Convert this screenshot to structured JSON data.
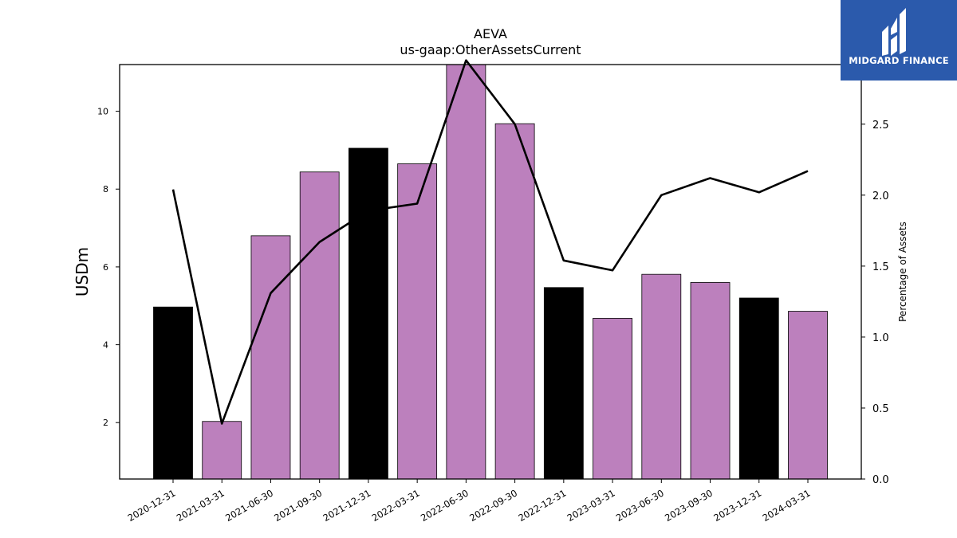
{
  "logo": {
    "text": "MIDGARD FINANCE",
    "icon": "midgard-logo-icon",
    "background": "#2b5aac"
  },
  "chart_data": {
    "type": "bar",
    "title": "AEVA",
    "subtitle": "us-gaap:OtherAssetsCurrent",
    "ylabel": "USDm",
    "y2label": "Percentage of Assets",
    "categories": [
      "2020-12-31",
      "2021-03-31",
      "2021-06-30",
      "2021-09-30",
      "2021-12-31",
      "2022-03-31",
      "2022-06-30",
      "2022-09-30",
      "2022-12-31",
      "2023-03-31",
      "2023-06-30",
      "2023-09-30",
      "2023-12-31",
      "2024-03-31"
    ],
    "series": [
      {
        "type": "bar",
        "axis": "left",
        "values": [
          4.97,
          2.03,
          6.8,
          8.44,
          9.05,
          8.65,
          11.3,
          9.68,
          5.47,
          4.68,
          5.81,
          5.6,
          5.2,
          4.86
        ],
        "colors": [
          "#000000",
          "#bc80bd",
          "#bc80bd",
          "#bc80bd",
          "#000000",
          "#bc80bd",
          "#bc80bd",
          "#bc80bd",
          "#000000",
          "#bc80bd",
          "#bc80bd",
          "#bc80bd",
          "#000000",
          "#bc80bd"
        ]
      },
      {
        "type": "line",
        "axis": "right",
        "values": [
          2.04,
          0.39,
          1.31,
          1.67,
          1.89,
          1.94,
          2.95,
          2.5,
          1.54,
          1.47,
          2.0,
          2.12,
          2.02,
          2.17
        ]
      }
    ],
    "ylim": [
      0.55,
      11.2
    ],
    "yticks": [
      2,
      4,
      6,
      8,
      10
    ],
    "y2lim": [
      0,
      2.92
    ],
    "y2ticks": [
      "0.0",
      "0.5",
      "1.0",
      "1.5",
      "2.0",
      "2.5"
    ],
    "grid": false,
    "legend": "none"
  }
}
